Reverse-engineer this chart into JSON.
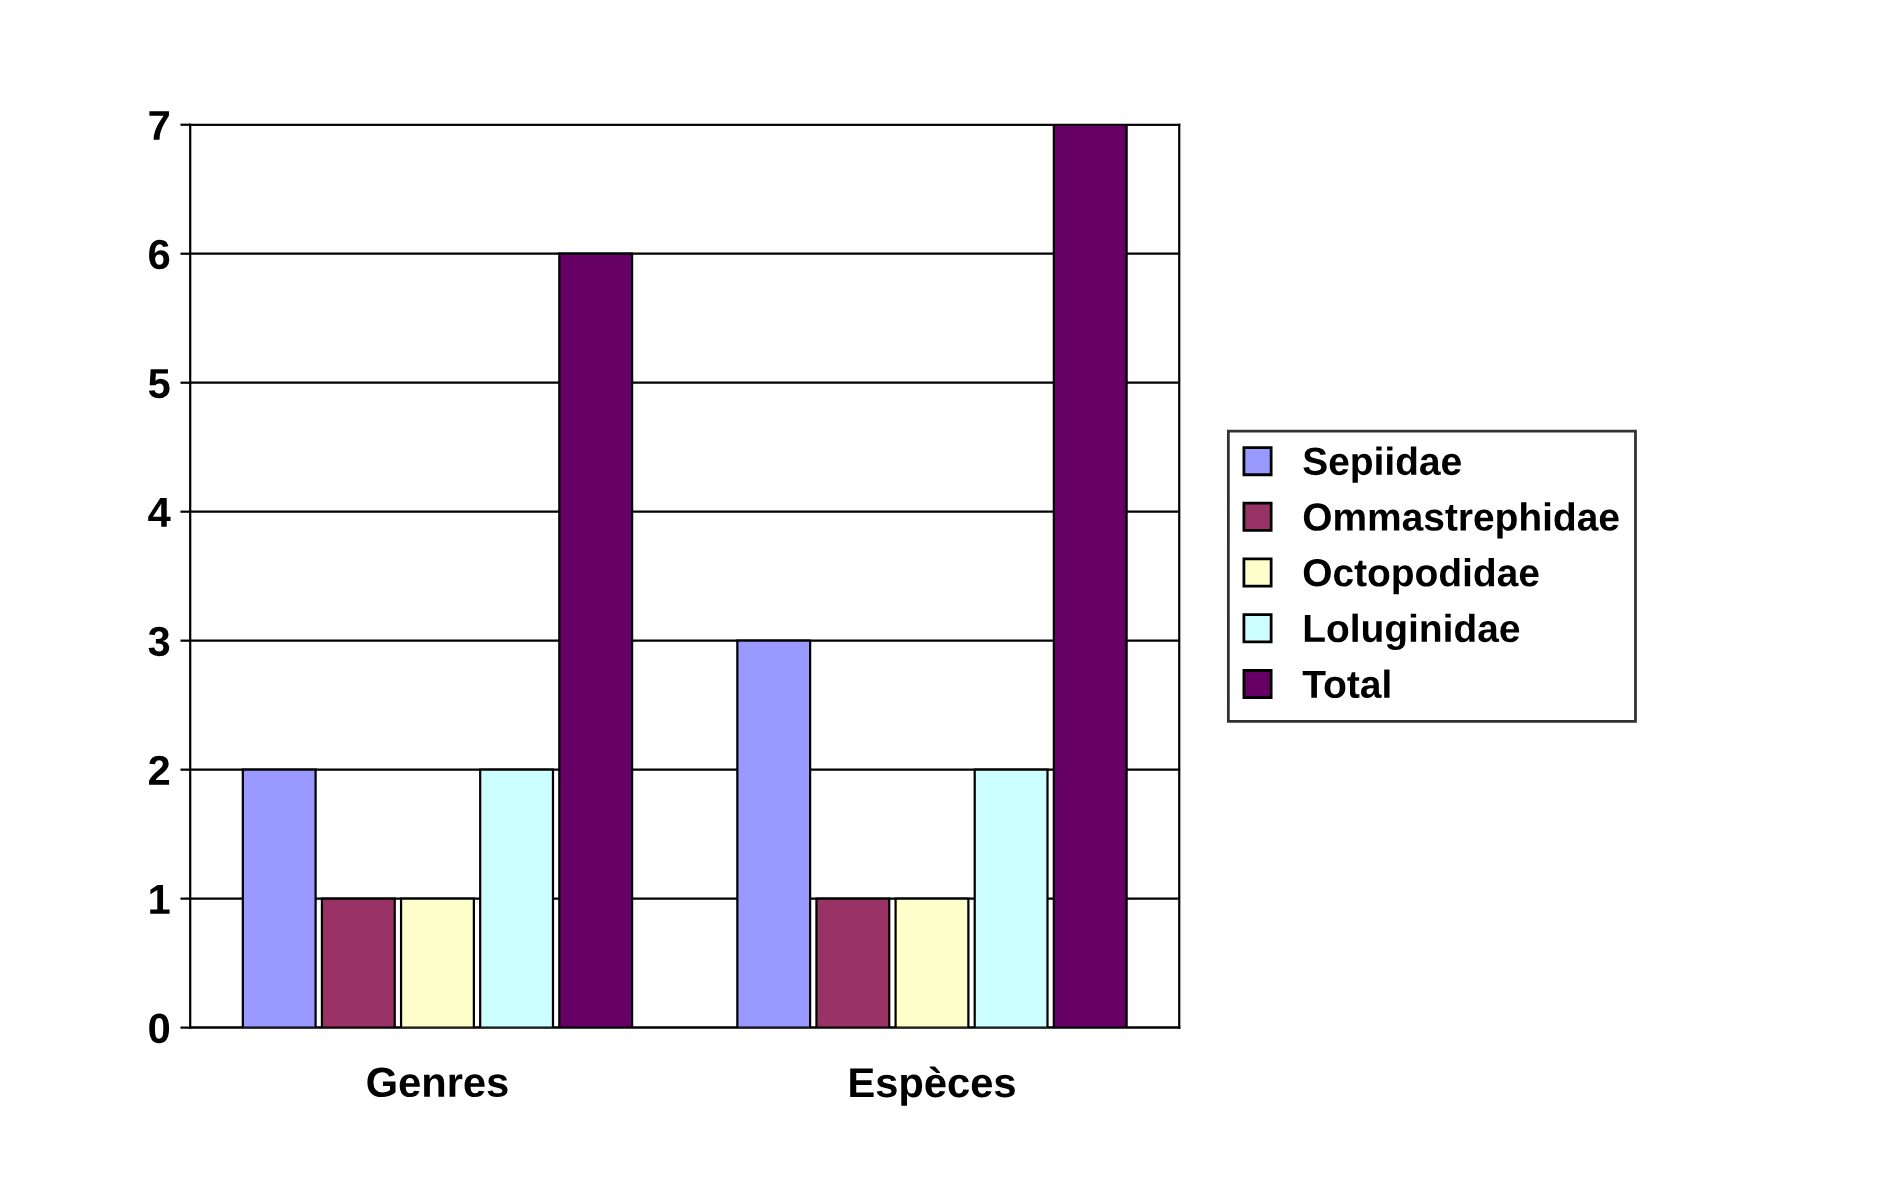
{
  "chart_data": {
    "type": "bar",
    "categories": [
      "Genres",
      "Espèces"
    ],
    "series": [
      {
        "name": "Sepiidae",
        "color": "#9999ff",
        "values": [
          2,
          3
        ]
      },
      {
        "name": "Ommastrephidae",
        "color": "#993366",
        "values": [
          1,
          1
        ]
      },
      {
        "name": "Octopodidae",
        "color": "#ffffcc",
        "values": [
          1,
          1
        ]
      },
      {
        "name": "Loluginidae",
        "color": "#ccffff",
        "values": [
          2,
          2
        ]
      },
      {
        "name": "Total",
        "color": "#660066",
        "values": [
          6,
          7
        ]
      }
    ],
    "ylim": [
      0,
      7
    ],
    "yticks": [
      0,
      1,
      2,
      3,
      4,
      5,
      6,
      7
    ],
    "grid": "y",
    "legend": "right"
  }
}
